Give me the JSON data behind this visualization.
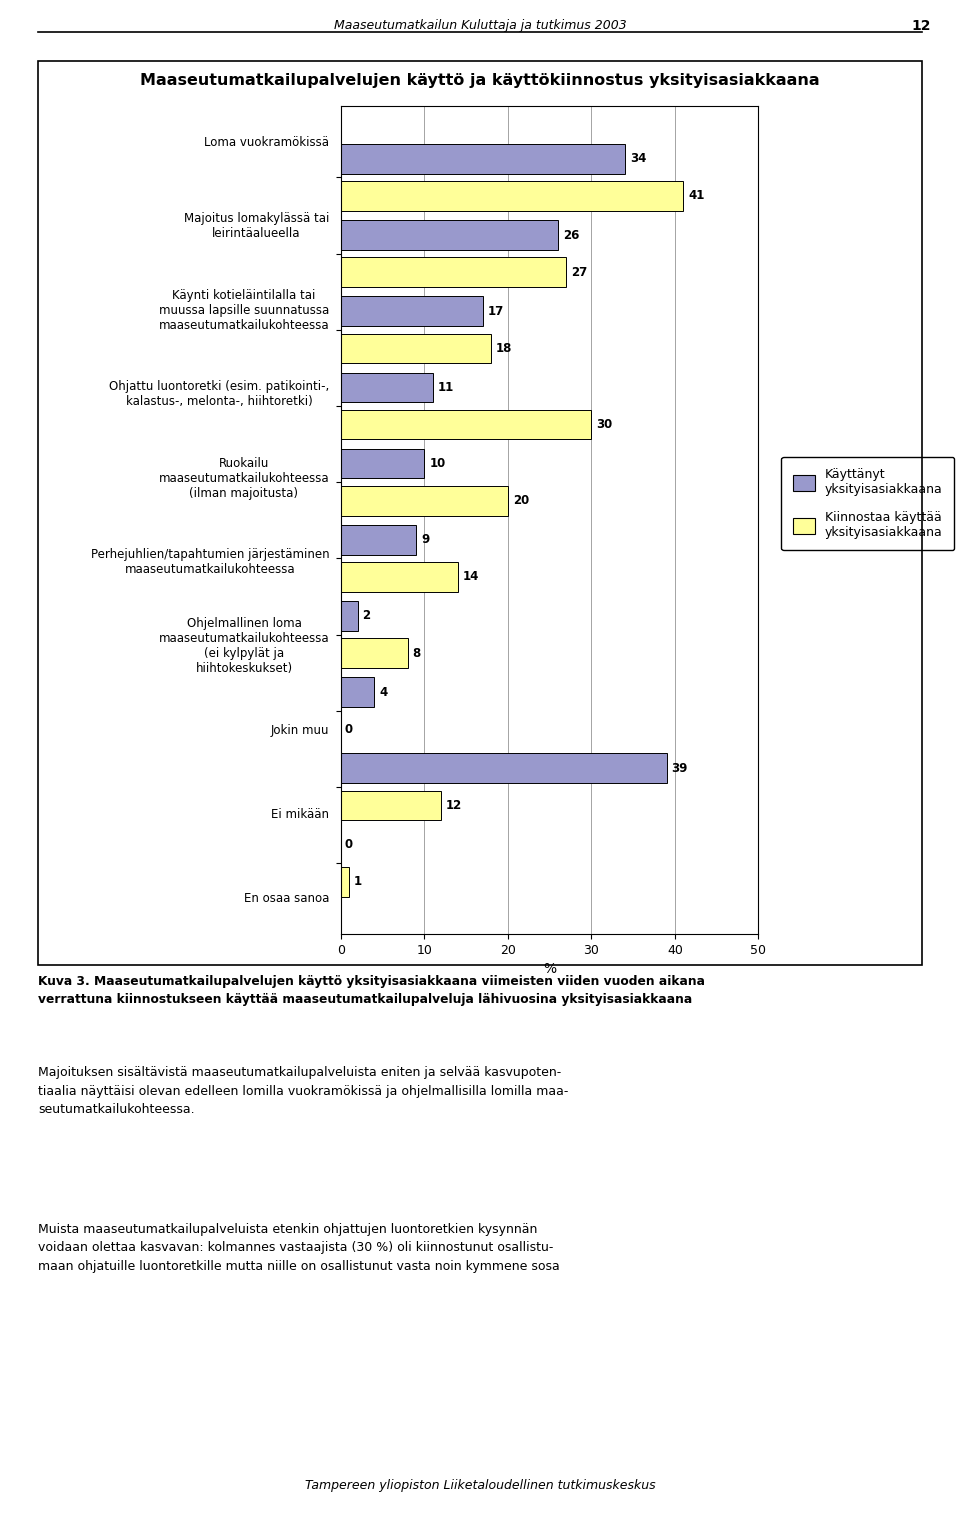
{
  "title": "Maaseutumatkailupalvelujen käyttö ja käyttökiinnostus yksityisasiakkaana",
  "header": "Maaseutumatkailun Kuluttaja ja tutkimus 2003",
  "page_number": "12",
  "categories": [
    "Loma vuokramökissä",
    "Majoitus lomakylässä tai\nleirintäalueella",
    "Käynti kotieläintilalla tai\nmuussa lapsille suunnatussa\nmaaseutumatkailukohteessa",
    "Ohjattu luontoretki (esim. patikointi-,\nkalastus-, melonta-, hiihtoretki)",
    "Ruokailu\nmaaseutumatkailukohteessa\n(ilman majoitusta)",
    "Perhejuhlien/tapahtumien järjestäminen\nmaaseutumatkailukohteessa",
    "Ohjelmallinen loma\nmaaseutumatkailukohteessa\n(ei kylpylät ja\nhiihtokeskukset)",
    "Jokin muu",
    "Ei mikään",
    "En osaa sanoa"
  ],
  "used_values": [
    34,
    26,
    17,
    11,
    10,
    9,
    2,
    4,
    39,
    0
  ],
  "interested_values": [
    41,
    27,
    18,
    30,
    20,
    14,
    8,
    0,
    12,
    1
  ],
  "color_used": "#9999cc",
  "color_interested": "#ffff99",
  "legend_used": "Käyttänyt\nyksityisasiakkaana",
  "legend_interested": "Kiinnostaa käyttää\nyksityisasiakkaana",
  "xlabel": "%",
  "xlim": [
    0,
    50
  ],
  "xticks": [
    0,
    10,
    20,
    30,
    40,
    50
  ],
  "fig_title_text": "Maaseutumatkailun Kuluttaja ja tutkimus 2003",
  "figure_caption_bold": "Kuva 3. Maaseutumatkailupalvelujen käyttö yksityisasiakkaana viimeisten viiden vuoden aikana\nverrattuna kiinnostukseen käyttää maaseutumatkailupalveluja lähivuosina yksityisasiakkaana",
  "body_text_1": "Majoituksen sisältävistä maaseutumatkailupalveluista eniten ja selvää kasvupoten-\ntiaalia näyttäisi olevan edelleen lomilla vuokramökissä ja ohjelmallisilla lomilla maa-\nseutumatkailukohteessa.",
  "body_text_2": "Muista maaseutumatkailupalveluista etenkin ohjattujen luontoretkien kysynnän\nvoidaan olettaa kasvavan: kolmannes vastaajista (30 %) oli kiinnostunut osallistu-\nmaan ohjatuille luontoretkille mutta niille on osallistunut vasta noin kymmene sosa",
  "footer_text": "Tampereen yliopiston Liiketaloudellinen tutkimuskeskus"
}
